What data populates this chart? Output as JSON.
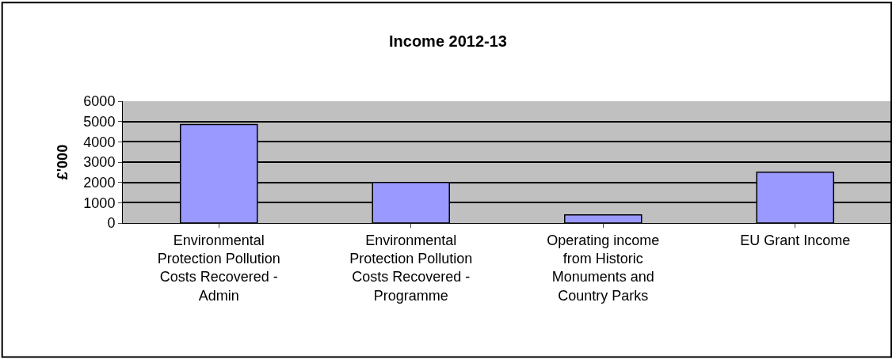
{
  "chart_data": {
    "type": "bar",
    "title": "Income 2012-13",
    "ylabel": "£'000",
    "categories": [
      "Environmental Protection Pollution Costs Recovered - Admin",
      "Environmental Protection Pollution Costs Recovered - Programme",
      "Operating income from Historic Monuments and Country Parks",
      "EU Grant Income"
    ],
    "values": [
      4850,
      2000,
      400,
      2500
    ],
    "color": "#9999ff",
    "ylim": [
      0,
      6000
    ],
    "yticks": [
      0,
      1000,
      2000,
      3000,
      4000,
      5000,
      6000
    ],
    "grid": "y"
  }
}
